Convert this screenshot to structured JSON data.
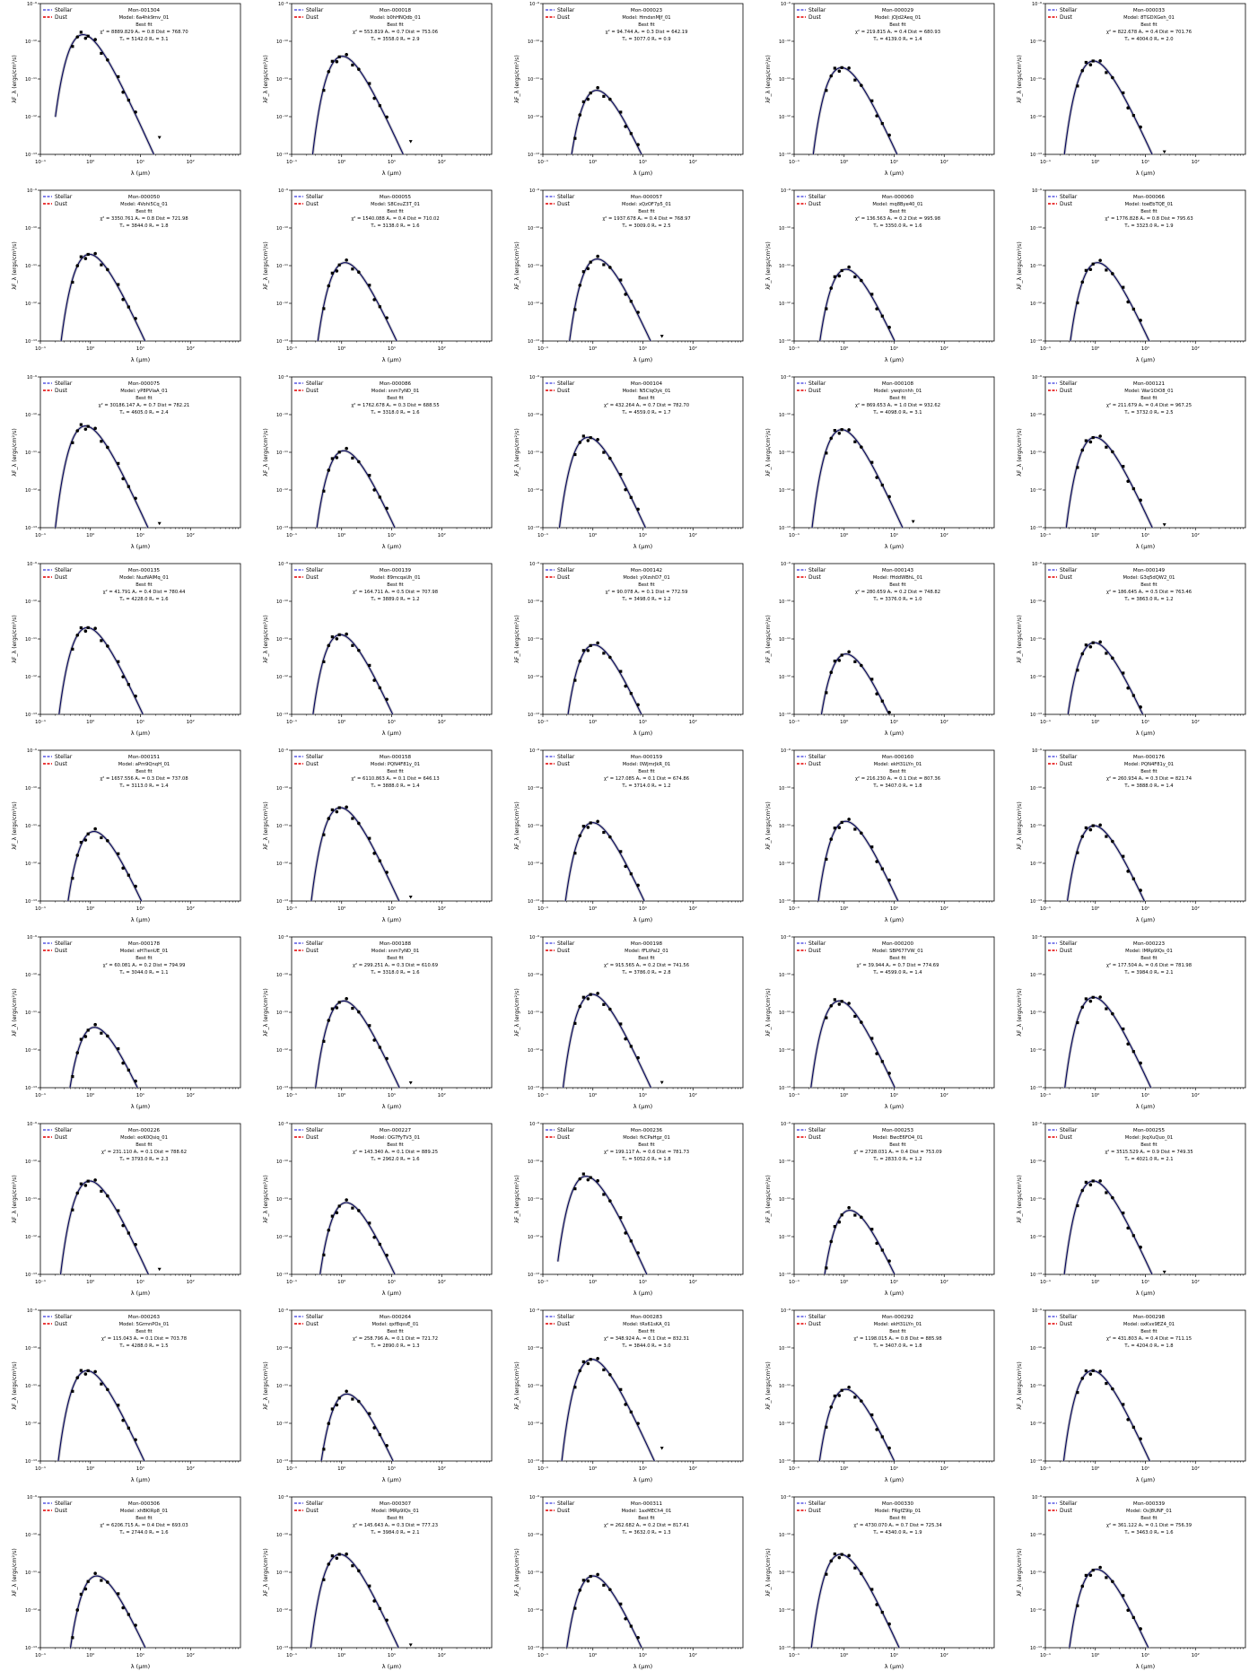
{
  "legend": {
    "stellar_label": "Stellar",
    "dust_label": "Dust",
    "stellar_color": "#6f6fe8",
    "dust_color": "#e82020"
  },
  "axis_labels": {
    "x": "λ (μm)",
    "y": "λF_λ (ergs/cm²/s)"
  },
  "best_fit_label": "Best fit",
  "model_color": "#0b0b5e",
  "model_spread_color": "#bfbfbf",
  "chart_data": [
    {
      "type": "scatter",
      "title": "Mon-001304",
      "model": "Model: 6a4hk9mv_01",
      "chi2": "8889.829",
      "av": "0.8",
      "dist": "768.70",
      "teff": "5142.0",
      "rs": "3.1",
      "xscale": "log",
      "yscale": "log",
      "xlim": [
        0.1,
        1000
      ],
      "ylim": [
        1e-13,
        1e-09
      ],
      "peak": 1.5e-10
    },
    {
      "type": "scatter",
      "title": "Mon-000018",
      "model": "Model: b0hHNQdb_01",
      "chi2": "553.819",
      "av": "0.7",
      "dist": "753.06",
      "teff": "3558.0",
      "rs": "2.9",
      "xscale": "log",
      "yscale": "log",
      "xlim": [
        0.1,
        1000
      ],
      "ylim": [
        1e-13,
        1e-09
      ],
      "peak": 4e-11
    },
    {
      "type": "scatter",
      "title": "Mon-000023",
      "model": "Model: HmdsnMJf_01",
      "chi2": "94.744",
      "av": "0.3",
      "dist": "642.19",
      "teff": "3077.0",
      "rs": "0.9",
      "xscale": "log",
      "yscale": "log",
      "xlim": [
        0.1,
        1000
      ],
      "ylim": [
        1e-13,
        1e-09
      ],
      "peak": 5e-12
    },
    {
      "type": "scatter",
      "title": "Mon-000029",
      "model": "Model: jOJd2Aeq_01",
      "chi2": "219.815",
      "av": "0.4",
      "dist": "680.93",
      "teff": "4139.0",
      "rs": "1.4",
      "xscale": "log",
      "yscale": "log",
      "xlim": [
        0.1,
        1000
      ],
      "ylim": [
        1e-13,
        1e-09
      ],
      "peak": 2e-11
    },
    {
      "type": "scatter",
      "title": "Mon-000033",
      "model": "Model: 8TGDXGeh_01",
      "chi2": "822.678",
      "av": "0.4",
      "dist": "701.76",
      "teff": "4004.0",
      "rs": "2.0",
      "xscale": "log",
      "yscale": "log",
      "xlim": [
        0.1,
        1000
      ],
      "ylim": [
        1e-13,
        1e-09
      ],
      "peak": 3e-11
    },
    {
      "type": "scatter",
      "title": "Mon-000050",
      "model": "Model: 4Vohi5Cq_01",
      "chi2": "3350.761",
      "av": "0.8",
      "dist": "721.98",
      "teff": "3844.0",
      "rs": "1.8",
      "xscale": "log",
      "yscale": "log",
      "xlim": [
        0.1,
        1000
      ],
      "ylim": [
        1e-13,
        1e-09
      ],
      "peak": 2e-11
    },
    {
      "type": "scatter",
      "title": "Mon-000055",
      "model": "Model: S8CouZ3T_01",
      "chi2": "1540.088",
      "av": "0.4",
      "dist": "710.02",
      "teff": "3138.0",
      "rs": "1.6",
      "xscale": "log",
      "yscale": "log",
      "xlim": [
        0.1,
        1000
      ],
      "ylim": [
        1e-13,
        1e-09
      ],
      "peak": 1.2e-11
    },
    {
      "type": "scatter",
      "title": "Mon-000057",
      "model": "Model: xQzOF7p5_01",
      "chi2": "1937.678",
      "av": "0.4",
      "dist": "768.97",
      "teff": "3009.0",
      "rs": "2.5",
      "xscale": "log",
      "yscale": "log",
      "xlim": [
        0.1,
        1000
      ],
      "ylim": [
        1e-13,
        1e-09
      ],
      "peak": 1.5e-11
    },
    {
      "type": "scatter",
      "title": "Mon-000060",
      "model": "Model: mq8Bye40_01",
      "chi2": "136.563",
      "av": "0.2",
      "dist": "995.98",
      "teff": "3350.0",
      "rs": "1.6",
      "xscale": "log",
      "yscale": "log",
      "xlim": [
        0.1,
        1000
      ],
      "ylim": [
        1e-13,
        1e-09
      ],
      "peak": 8e-12
    },
    {
      "type": "scatter",
      "title": "Mon-000066",
      "model": "Model: toeEbTQE_01",
      "chi2": "1776.828",
      "av": "0.8",
      "dist": "795.63",
      "teff": "3323.0",
      "rs": "1.9",
      "xscale": "log",
      "yscale": "log",
      "xlim": [
        0.1,
        1000
      ],
      "ylim": [
        1e-13,
        1e-09
      ],
      "peak": 1.2e-11
    },
    {
      "type": "scatter",
      "title": "Mon-000075",
      "model": "Model: yP8PVIaA_01",
      "chi2": "30186.147",
      "av": "0.7",
      "dist": "782.21",
      "teff": "4605.0",
      "rs": "2.4",
      "xscale": "log",
      "yscale": "log",
      "xlim": [
        0.1,
        1000
      ],
      "ylim": [
        1e-13,
        1e-09
      ],
      "peak": 5e-11
    },
    {
      "type": "scatter",
      "title": "Mon-000086",
      "model": "Model: snm7yND_01",
      "chi2": "1762.678",
      "av": "0.3",
      "dist": "688.55",
      "teff": "3318.0",
      "rs": "1.6",
      "xscale": "log",
      "yscale": "log",
      "xlim": [
        0.1,
        1000
      ],
      "ylim": [
        1e-13,
        1e-09
      ],
      "peak": 1.1e-11
    },
    {
      "type": "scatter",
      "title": "Mon-000104",
      "model": "Model: N5ClqOyk_01",
      "chi2": "432.264",
      "av": "0.7",
      "dist": "782.70",
      "teff": "4559.0",
      "rs": "1.7",
      "xscale": "log",
      "yscale": "log",
      "xlim": [
        0.1,
        1000
      ],
      "ylim": [
        1e-13,
        1e-09
      ],
      "peak": 2.5e-11
    },
    {
      "type": "scatter",
      "title": "Mon-000108",
      "model": "Model: ywqtcnhh_01",
      "chi2": "869.653",
      "av": "1.0",
      "dist": "932.62",
      "teff": "4098.0",
      "rs": "3.1",
      "xscale": "log",
      "yscale": "log",
      "xlim": [
        0.1,
        1000
      ],
      "ylim": [
        1e-13,
        1e-09
      ],
      "peak": 4e-11
    },
    {
      "type": "scatter",
      "title": "Mon-000121",
      "model": "Model: War1OiO8_01",
      "chi2": "211.679",
      "av": "0.4",
      "dist": "967.25",
      "teff": "3732.0",
      "rs": "2.5",
      "xscale": "log",
      "yscale": "log",
      "xlim": [
        0.1,
        1000
      ],
      "ylim": [
        1e-13,
        1e-09
      ],
      "peak": 2.5e-11
    },
    {
      "type": "scatter",
      "title": "Mon-000135",
      "model": "Model: NuzNAIMq_01",
      "chi2": "41.791",
      "av": "0.4",
      "dist": "780.44",
      "teff": "4228.0",
      "rs": "1.6",
      "xscale": "log",
      "yscale": "log",
      "xlim": [
        0.1,
        1000
      ],
      "ylim": [
        1e-13,
        1e-09
      ],
      "peak": 2e-11
    },
    {
      "type": "scatter",
      "title": "Mon-000139",
      "model": "Model: 89mcqaUh_01",
      "chi2": "164.711",
      "av": "0.5",
      "dist": "707.98",
      "teff": "3889.0",
      "rs": "1.2",
      "xscale": "log",
      "yscale": "log",
      "xlim": [
        0.1,
        1000
      ],
      "ylim": [
        1e-13,
        1e-09
      ],
      "peak": 1.3e-11
    },
    {
      "type": "scatter",
      "title": "Mon-000142",
      "model": "Model: yIXzshD7_01",
      "chi2": "90.078",
      "av": "0.1",
      "dist": "772.59",
      "teff": "3498.0",
      "rs": "1.2",
      "xscale": "log",
      "yscale": "log",
      "xlim": [
        0.1,
        1000
      ],
      "ylim": [
        1e-13,
        1e-09
      ],
      "peak": 7e-12
    },
    {
      "type": "scatter",
      "title": "Mon-000143",
      "model": "Model: fHddWBhL_01",
      "chi2": "280.659",
      "av": "0.2",
      "dist": "748.82",
      "teff": "3376.0",
      "rs": "1.0",
      "xscale": "log",
      "yscale": "log",
      "xlim": [
        0.1,
        1000
      ],
      "ylim": [
        1e-13,
        1e-09
      ],
      "peak": 4e-12
    },
    {
      "type": "scatter",
      "title": "Mon-000149",
      "model": "Model: G3q5dQW2_01",
      "chi2": "186.645",
      "av": "0.5",
      "dist": "763.46",
      "teff": "3863.0",
      "rs": "1.2",
      "xscale": "log",
      "yscale": "log",
      "xlim": [
        0.1,
        1000
      ],
      "ylim": [
        1e-13,
        1e-09
      ],
      "peak": 8e-12
    },
    {
      "type": "scatter",
      "title": "Mon-000151",
      "model": "Model: aPm9QnqH_01",
      "chi2": "1657.556",
      "av": "0.3",
      "dist": "737.08",
      "teff": "3113.0",
      "rs": "1.4",
      "xscale": "log",
      "yscale": "log",
      "xlim": [
        0.1,
        1000
      ],
      "ylim": [
        1e-13,
        1e-09
      ],
      "peak": 7e-12
    },
    {
      "type": "scatter",
      "title": "Mon-000158",
      "model": "Model: PQN4F81y_01",
      "chi2": "6110.863",
      "av": "0.1",
      "dist": "646.13",
      "teff": "3888.0",
      "rs": "1.4",
      "xscale": "log",
      "yscale": "log",
      "xlim": [
        0.1,
        1000
      ],
      "ylim": [
        1e-13,
        1e-09
      ],
      "peak": 3e-11
    },
    {
      "type": "scatter",
      "title": "Mon-000159",
      "model": "Model: 0WJmrJkR_01",
      "chi2": "127.085",
      "av": "0.1",
      "dist": "674.86",
      "teff": "3714.0",
      "rs": "1.2",
      "xscale": "log",
      "yscale": "log",
      "xlim": [
        0.1,
        1000
      ],
      "ylim": [
        1e-13,
        1e-09
      ],
      "peak": 1.2e-11
    },
    {
      "type": "scatter",
      "title": "Mon-000160",
      "model": "Model: ekH31LYn_01",
      "chi2": "216.230",
      "av": "0.1",
      "dist": "807.36",
      "teff": "3407.0",
      "rs": "1.8",
      "xscale": "log",
      "yscale": "log",
      "xlim": [
        0.1,
        1000
      ],
      "ylim": [
        1e-13,
        1e-09
      ],
      "peak": 1.3e-11
    },
    {
      "type": "scatter",
      "title": "Mon-000176",
      "model": "Model: PQN4F81y_01",
      "chi2": "260.934",
      "av": "0.3",
      "dist": "821.74",
      "teff": "3888.0",
      "rs": "1.4",
      "xscale": "log",
      "yscale": "log",
      "xlim": [
        0.1,
        1000
      ],
      "ylim": [
        1e-13,
        1e-09
      ],
      "peak": 1e-11
    },
    {
      "type": "scatter",
      "title": "Mon-000178",
      "model": "Model: eH7ienUE_01",
      "chi2": "60.081",
      "av": "0.2",
      "dist": "794.99",
      "teff": "3044.0",
      "rs": "1.1",
      "xscale": "log",
      "yscale": "log",
      "xlim": [
        0.1,
        1000
      ],
      "ylim": [
        1e-13,
        1e-09
      ],
      "peak": 4e-12
    },
    {
      "type": "scatter",
      "title": "Mon-000188",
      "model": "Model: snm7yND_01",
      "chi2": "299.251",
      "av": "0.3",
      "dist": "610.69",
      "teff": "3318.0",
      "rs": "1.6",
      "xscale": "log",
      "yscale": "log",
      "xlim": [
        0.1,
        1000
      ],
      "ylim": [
        1e-13,
        1e-09
      ],
      "peak": 2e-11
    },
    {
      "type": "scatter",
      "title": "Mon-000198",
      "model": "Model: fFLtPal2_01",
      "chi2": "915.565",
      "av": "0.2",
      "dist": "741.56",
      "teff": "3786.0",
      "rs": "2.8",
      "xscale": "log",
      "yscale": "log",
      "xlim": [
        0.1,
        1000
      ],
      "ylim": [
        1e-13,
        1e-09
      ],
      "peak": 3e-11
    },
    {
      "type": "scatter",
      "title": "Mon-000200",
      "model": "Model: SBP677VW_01",
      "chi2": "39.944",
      "av": "0.7",
      "dist": "774.69",
      "teff": "4599.0",
      "rs": "1.4",
      "xscale": "log",
      "yscale": "log",
      "xlim": [
        0.1,
        1000
      ],
      "ylim": [
        1e-13,
        1e-09
      ],
      "peak": 2e-11
    },
    {
      "type": "scatter",
      "title": "Mon-000223",
      "model": "Model: IMRp9IQs_01",
      "chi2": "177.504",
      "av": "0.6",
      "dist": "781.98",
      "teff": "3984.0",
      "rs": "2.1",
      "xscale": "log",
      "yscale": "log",
      "xlim": [
        0.1,
        1000
      ],
      "ylim": [
        1e-13,
        1e-09
      ],
      "peak": 2.5e-11
    },
    {
      "type": "scatter",
      "title": "Mon-000226",
      "model": "Model: eoK0Qsiq_01",
      "chi2": "231.110",
      "av": "0.1",
      "dist": "788.62",
      "teff": "3793.0",
      "rs": "2.3",
      "xscale": "log",
      "yscale": "log",
      "xlim": [
        0.1,
        1000
      ],
      "ylim": [
        1e-13,
        1e-09
      ],
      "peak": 3e-11
    },
    {
      "type": "scatter",
      "title": "Mon-000227",
      "model": "Model: OG7FyTV3_01",
      "chi2": "143.340",
      "av": "0.1",
      "dist": "889.25",
      "teff": "2962.0",
      "rs": "1.6",
      "xscale": "log",
      "yscale": "log",
      "xlim": [
        0.1,
        1000
      ],
      "ylim": [
        1e-13,
        1e-09
      ],
      "peak": 8e-12
    },
    {
      "type": "scatter",
      "title": "Mon-000236",
      "model": "Model: fkCPaHgz_01",
      "chi2": "199.117",
      "av": "0.6",
      "dist": "781.73",
      "teff": "5052.0",
      "rs": "1.8",
      "xscale": "log",
      "yscale": "log",
      "xlim": [
        0.1,
        1000
      ],
      "ylim": [
        1e-13,
        1e-09
      ],
      "peak": 4e-11
    },
    {
      "type": "scatter",
      "title": "Mon-000253",
      "model": "Model: BwcE6FO4_01",
      "chi2": "2728.031",
      "av": "0.4",
      "dist": "753.09",
      "teff": "2833.0",
      "rs": "1.2",
      "xscale": "log",
      "yscale": "log",
      "xlim": [
        0.1,
        1000
      ],
      "ylim": [
        1e-13,
        1e-09
      ],
      "peak": 5e-12
    },
    {
      "type": "scatter",
      "title": "Mon-000255",
      "model": "Model: JkqXuQuo_01",
      "chi2": "3515.529",
      "av": "0.9",
      "dist": "749.35",
      "teff": "4021.0",
      "rs": "2.1",
      "xscale": "log",
      "yscale": "log",
      "xlim": [
        0.1,
        1000
      ],
      "ylim": [
        1e-13,
        1e-09
      ],
      "peak": 3e-11
    },
    {
      "type": "scatter",
      "title": "Mon-000263",
      "model": "Model: 5GrmnPOs_01",
      "chi2": "115.043",
      "av": "0.1",
      "dist": "703.78",
      "teff": "4288.0",
      "rs": "1.5",
      "xscale": "log",
      "yscale": "log",
      "xlim": [
        0.1,
        1000
      ],
      "ylim": [
        1e-13,
        1e-09
      ],
      "peak": 2.5e-11
    },
    {
      "type": "scatter",
      "title": "Mon-000264",
      "model": "Model: qxf8qsvE_01",
      "chi2": "258.796",
      "av": "0.1",
      "dist": "721.72",
      "teff": "2890.0",
      "rs": "1.3",
      "xscale": "log",
      "yscale": "log",
      "xlim": [
        0.1,
        1000
      ],
      "ylim": [
        1e-13,
        1e-09
      ],
      "peak": 6e-12
    },
    {
      "type": "scatter",
      "title": "Mon-000283",
      "model": "Model: tRs61sKA_01",
      "chi2": "348.924",
      "av": "0.1",
      "dist": "832.31",
      "teff": "3844.0",
      "rs": "3.0",
      "xscale": "log",
      "yscale": "log",
      "xlim": [
        0.1,
        1000
      ],
      "ylim": [
        1e-13,
        1e-09
      ],
      "peak": 5e-11
    },
    {
      "type": "scatter",
      "title": "Mon-000292",
      "model": "Model: ekH31LYn_01",
      "chi2": "1198.015",
      "av": "0.8",
      "dist": "885.98",
      "teff": "3407.0",
      "rs": "1.8",
      "xscale": "log",
      "yscale": "log",
      "xlim": [
        0.1,
        1000
      ],
      "ylim": [
        1e-13,
        1e-09
      ],
      "peak": 8e-12
    },
    {
      "type": "scatter",
      "title": "Mon-000298",
      "model": "Model: oxKvx9EZ4_01",
      "chi2": "431.803",
      "av": "0.4",
      "dist": "711.15",
      "teff": "4204.0",
      "rs": "1.8",
      "xscale": "log",
      "yscale": "log",
      "xlim": [
        0.1,
        1000
      ],
      "ylim": [
        1e-13,
        1e-09
      ],
      "peak": 2.5e-11
    },
    {
      "type": "scatter",
      "title": "Mon-000306",
      "model": "Model: xhBKIRp8_01",
      "chi2": "6206.715",
      "av": "0.4",
      "dist": "693.03",
      "teff": "2744.0",
      "rs": "1.6",
      "xscale": "log",
      "yscale": "log",
      "xlim": [
        0.1,
        1000
      ],
      "ylim": [
        1e-13,
        1e-09
      ],
      "peak": 8e-12
    },
    {
      "type": "scatter",
      "title": "Mon-000307",
      "model": "Model: IMRp9IQs_01",
      "chi2": "145.643",
      "av": "0.3",
      "dist": "777.23",
      "teff": "3984.0",
      "rs": "2.1",
      "xscale": "log",
      "yscale": "log",
      "xlim": [
        0.1,
        1000
      ],
      "ylim": [
        1e-13,
        1e-09
      ],
      "peak": 3e-11
    },
    {
      "type": "scatter",
      "title": "Mon-000311",
      "model": "Model: 1axMECh4_01",
      "chi2": "262.682",
      "av": "0.2",
      "dist": "817.41",
      "teff": "3632.0",
      "rs": "1.3",
      "xscale": "log",
      "yscale": "log",
      "xlim": [
        0.1,
        1000
      ],
      "ylim": [
        1e-13,
        1e-09
      ],
      "peak": 8e-12
    },
    {
      "type": "scatter",
      "title": "Mon-000330",
      "model": "Model: FRgfZ9Ip_01",
      "chi2": "4730.070",
      "av": "0.7",
      "dist": "725.34",
      "teff": "4340.0",
      "rs": "1.9",
      "xscale": "log",
      "yscale": "log",
      "xlim": [
        0.1,
        1000
      ],
      "ylim": [
        1e-13,
        1e-09
      ],
      "peak": 3e-11
    },
    {
      "type": "scatter",
      "title": "Mon-000339",
      "model": "Model: Os]8UNF_01",
      "chi2": "361.122",
      "av": "0.1",
      "dist": "756.39",
      "teff": "3463.0",
      "rs": "1.6",
      "xscale": "log",
      "yscale": "log",
      "xlim": [
        0.1,
        1000
      ],
      "ylim": [
        1e-13,
        1e-09
      ],
      "peak": 1.2e-11
    }
  ]
}
